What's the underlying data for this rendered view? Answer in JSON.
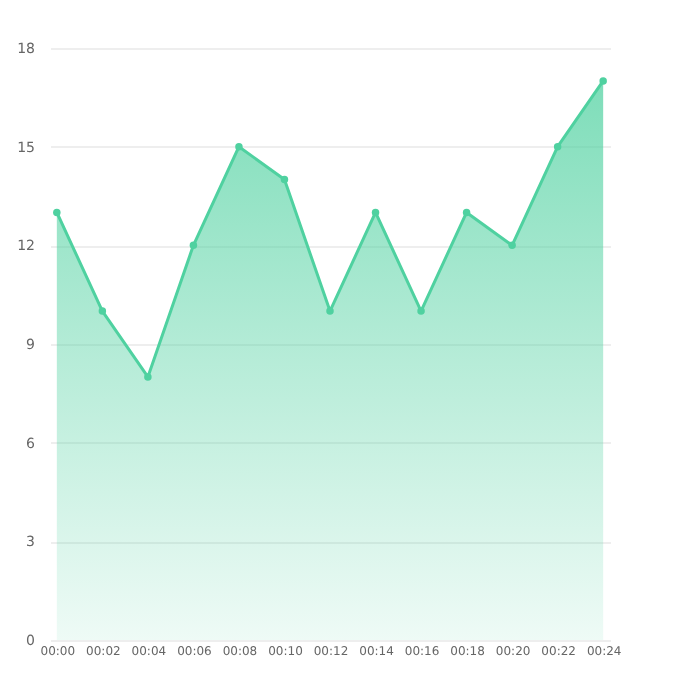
{
  "chart_data": {
    "type": "area",
    "categories": [
      "00:00",
      "00:02",
      "00:04",
      "00:06",
      "00:08",
      "00:10",
      "00:12",
      "00:14",
      "00:16",
      "00:18",
      "00:20",
      "00:22",
      "00:24"
    ],
    "series": [
      {
        "color": "#4fd1a0",
        "values": [
          13,
          10,
          8,
          12,
          15,
          14,
          10,
          13,
          10,
          13,
          12,
          15,
          17
        ]
      }
    ],
    "ylim": [
      0,
      18
    ],
    "yticks": [
      0,
      3,
      6,
      9,
      12,
      15,
      18
    ],
    "grid": "y",
    "marker": "circle"
  }
}
